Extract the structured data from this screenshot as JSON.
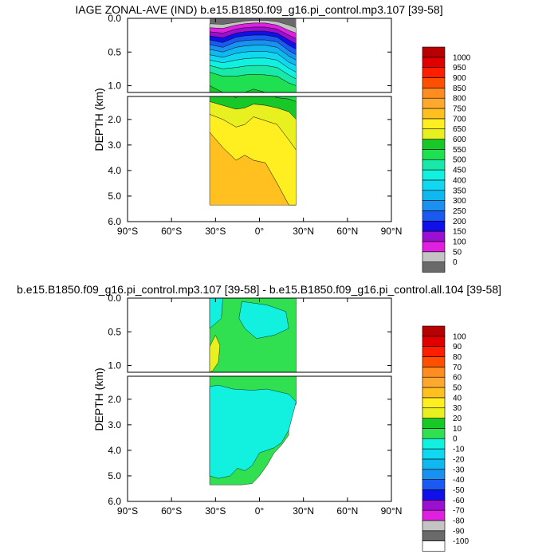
{
  "chart_data": [
    {
      "type": "heatmap",
      "title": "IAGE ZONAL-AVE (IND) b.e15.B1850.f09_g16.pi_control.mp3.107 [39-58]",
      "ylabel": "DEPTH (km)",
      "xlabel": "",
      "x_ticks": [
        "90°S",
        "60°S",
        "30°S",
        "0°",
        "30°N",
        "60°N",
        "90°N"
      ],
      "x_tick_values": [
        -90,
        -60,
        -30,
        0,
        30,
        60,
        90
      ],
      "xlim": [
        -90,
        90
      ],
      "y_ticks_upper": [
        "0.0",
        "0.5",
        "1.0"
      ],
      "y_tick_values_upper": [
        0.0,
        0.5,
        1.0
      ],
      "ylim_upper": [
        0,
        1.1
      ],
      "y_ticks_lower": [
        "2.0",
        "3.0",
        "4.0",
        "5.0",
        "6.0"
      ],
      "y_tick_values_lower": [
        2.0,
        3.0,
        4.0,
        5.0,
        6.0
      ],
      "ylim_lower": [
        1.1,
        6.0
      ],
      "data_extent": {
        "lat_min": -34,
        "lat_max": 25,
        "max_depth_km": 5.35
      },
      "colorbar_labels": [
        "0",
        "50",
        "100",
        "150",
        "200",
        "250",
        "300",
        "350",
        "400",
        "450",
        "500",
        "550",
        "600",
        "650",
        "700",
        "750",
        "800",
        "850",
        "900",
        "950",
        "1000"
      ],
      "colors": [
        "#6a6a6a",
        "#c4c4c4",
        "#e020e0",
        "#9a10d0",
        "#1010e8",
        "#1a5af0",
        "#1a90f0",
        "#10b8f0",
        "#10d8f0",
        "#12f0e0",
        "#1ae8a8",
        "#1ee050",
        "#18c828",
        "#e8f020",
        "#ffee20",
        "#ffc020",
        "#ffa830",
        "#ff8c20",
        "#ff5000",
        "#ff1e00",
        "#e00000",
        "#b80000"
      ],
      "profiles": [
        {
          "lat": -34,
          "bounds": [
            0.0,
            0.08,
            0.14,
            0.2,
            0.26,
            0.32,
            0.39,
            0.46,
            0.54,
            0.62,
            0.7,
            0.8,
            1.0,
            1.3,
            1.8,
            2.5,
            6.0
          ]
        },
        {
          "lat": -25,
          "bounds": [
            0.0,
            0.09,
            0.15,
            0.22,
            0.29,
            0.36,
            0.43,
            0.5,
            0.58,
            0.66,
            0.75,
            0.86,
            1.1,
            1.45,
            2.0,
            3.1,
            6.0
          ]
        },
        {
          "lat": -16,
          "bounds": [
            0.0,
            0.06,
            0.1,
            0.16,
            0.22,
            0.28,
            0.35,
            0.43,
            0.52,
            0.62,
            0.73,
            0.86,
            1.15,
            1.6,
            2.3,
            3.6,
            6.0
          ]
        },
        {
          "lat": -10,
          "bounds": [
            0.0,
            0.04,
            0.08,
            0.14,
            0.2,
            0.26,
            0.33,
            0.41,
            0.5,
            0.6,
            0.71,
            0.84,
            1.1,
            1.55,
            2.2,
            3.4,
            6.0
          ]
        },
        {
          "lat": -4,
          "bounds": [
            0.0,
            0.03,
            0.07,
            0.13,
            0.19,
            0.25,
            0.32,
            0.4,
            0.49,
            0.59,
            0.7,
            0.83,
            1.05,
            1.4,
            1.9,
            3.6,
            6.0
          ]
        },
        {
          "lat": 4,
          "bounds": [
            0.0,
            0.03,
            0.07,
            0.13,
            0.19,
            0.25,
            0.32,
            0.4,
            0.49,
            0.59,
            0.7,
            0.84,
            1.1,
            1.45,
            2.05,
            3.7,
            6.0
          ]
        },
        {
          "lat": 12,
          "bounds": [
            0.0,
            0.05,
            0.1,
            0.16,
            0.22,
            0.28,
            0.35,
            0.43,
            0.52,
            0.62,
            0.73,
            0.86,
            1.15,
            1.55,
            2.2,
            4.5,
            6.0
          ]
        },
        {
          "lat": 20,
          "bounds": [
            0.0,
            0.1,
            0.18,
            0.25,
            0.32,
            0.4,
            0.48,
            0.56,
            0.65,
            0.74,
            0.84,
            0.96,
            1.2,
            1.7,
            2.8,
            5.5,
            6.0
          ]
        },
        {
          "lat": 25,
          "bounds": [
            0.0,
            0.14,
            0.22,
            0.3,
            0.38,
            0.46,
            0.54,
            0.62,
            0.7,
            0.8,
            0.9,
            1.0,
            1.3,
            2.0,
            3.2,
            6.0,
            6.0
          ]
        }
      ]
    },
    {
      "type": "heatmap",
      "title": "b.e15.B1850.f09_g16.pi_control.mp3.107 [39-58] - b.e15.B1850.f09_g16.pi_control.all.104 [39-58]",
      "ylabel": "DEPTH (km)",
      "xlabel": "",
      "x_ticks": [
        "90°S",
        "60°S",
        "30°S",
        "0°",
        "30°N",
        "60°N",
        "90°N"
      ],
      "x_tick_values": [
        -90,
        -60,
        -30,
        0,
        30,
        60,
        90
      ],
      "xlim": [
        -90,
        90
      ],
      "y_ticks_upper": [
        "0.0",
        "0.5",
        "1.0"
      ],
      "y_tick_values_upper": [
        0.0,
        0.5,
        1.0
      ],
      "ylim_upper": [
        0,
        1.1
      ],
      "y_ticks_lower": [
        "2.0",
        "3.0",
        "4.0",
        "5.0",
        "6.0"
      ],
      "y_tick_values_lower": [
        2.0,
        3.0,
        4.0,
        5.0,
        6.0
      ],
      "ylim_lower": [
        1.1,
        6.0
      ],
      "data_extent": {
        "lat_min": -34,
        "lat_max": 25,
        "max_depth_km": 5.35
      },
      "colorbar_labels": [
        "-100",
        "-90",
        "-80",
        "-70",
        "-60",
        "-50",
        "-40",
        "-30",
        "-20",
        "-10",
        "0",
        "10",
        "20",
        "30",
        "40",
        "50",
        "60",
        "70",
        "80",
        "90",
        "100"
      ],
      "colors": [
        "#ffffff",
        "#6a6a6a",
        "#c4c4c4",
        "#e020e0",
        "#9a10d0",
        "#1010e8",
        "#1a5af0",
        "#1a90f0",
        "#10b8f0",
        "#10d8f0",
        "#12f0e0",
        "#30e050",
        "#18c828",
        "#e8f020",
        "#ffee20",
        "#ffc020",
        "#ffa830",
        "#ff8c20",
        "#ff5000",
        "#ff1e00",
        "#e00000",
        "#b80000"
      ],
      "regions": [
        {
          "name": "upper_positive_band",
          "value_range": [
            0,
            10
          ]
        },
        {
          "name": "upper_negative_patch",
          "value_range": [
            -10,
            0
          ]
        },
        {
          "name": "deep_negative_region",
          "value_range": [
            -10,
            0
          ]
        },
        {
          "name": "small_positive_patch",
          "value_range": [
            10,
            20
          ]
        }
      ]
    }
  ]
}
